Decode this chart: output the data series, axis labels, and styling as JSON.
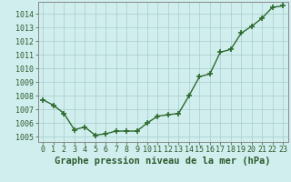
{
  "x": [
    0,
    1,
    2,
    3,
    4,
    5,
    6,
    7,
    8,
    9,
    10,
    11,
    12,
    13,
    14,
    15,
    16,
    17,
    18,
    19,
    20,
    21,
    22,
    23
  ],
  "y": [
    1007.7,
    1007.3,
    1006.7,
    1005.5,
    1005.7,
    1005.1,
    1005.2,
    1005.4,
    1005.4,
    1005.4,
    1006.0,
    1006.5,
    1006.6,
    1006.7,
    1008.0,
    1009.4,
    1009.6,
    1011.2,
    1011.4,
    1012.6,
    1013.1,
    1013.7,
    1014.5,
    1014.6
  ],
  "line_color": "#2d6a2d",
  "marker": "+",
  "marker_size": 4,
  "marker_lw": 1.2,
  "bg_color": "#d0eeee",
  "grid_color": "#a8cccc",
  "bottom_label": "Graphe pression niveau de la mer (hPa)",
  "ylim": [
    1004.6,
    1014.9
  ],
  "xlim": [
    -0.5,
    23.5
  ],
  "yticks": [
    1005,
    1006,
    1007,
    1008,
    1009,
    1010,
    1011,
    1012,
    1013,
    1014
  ],
  "xtick_labels": [
    "0",
    "1",
    "2",
    "3",
    "4",
    "5",
    "6",
    "7",
    "8",
    "9",
    "10",
    "11",
    "12",
    "13",
    "14",
    "15",
    "16",
    "17",
    "18",
    "19",
    "20",
    "21",
    "22",
    "23"
  ],
  "title_fontsize": 7.5,
  "tick_fontsize": 6.0,
  "label_color": "#2d5a2d",
  "line_width": 1.0
}
